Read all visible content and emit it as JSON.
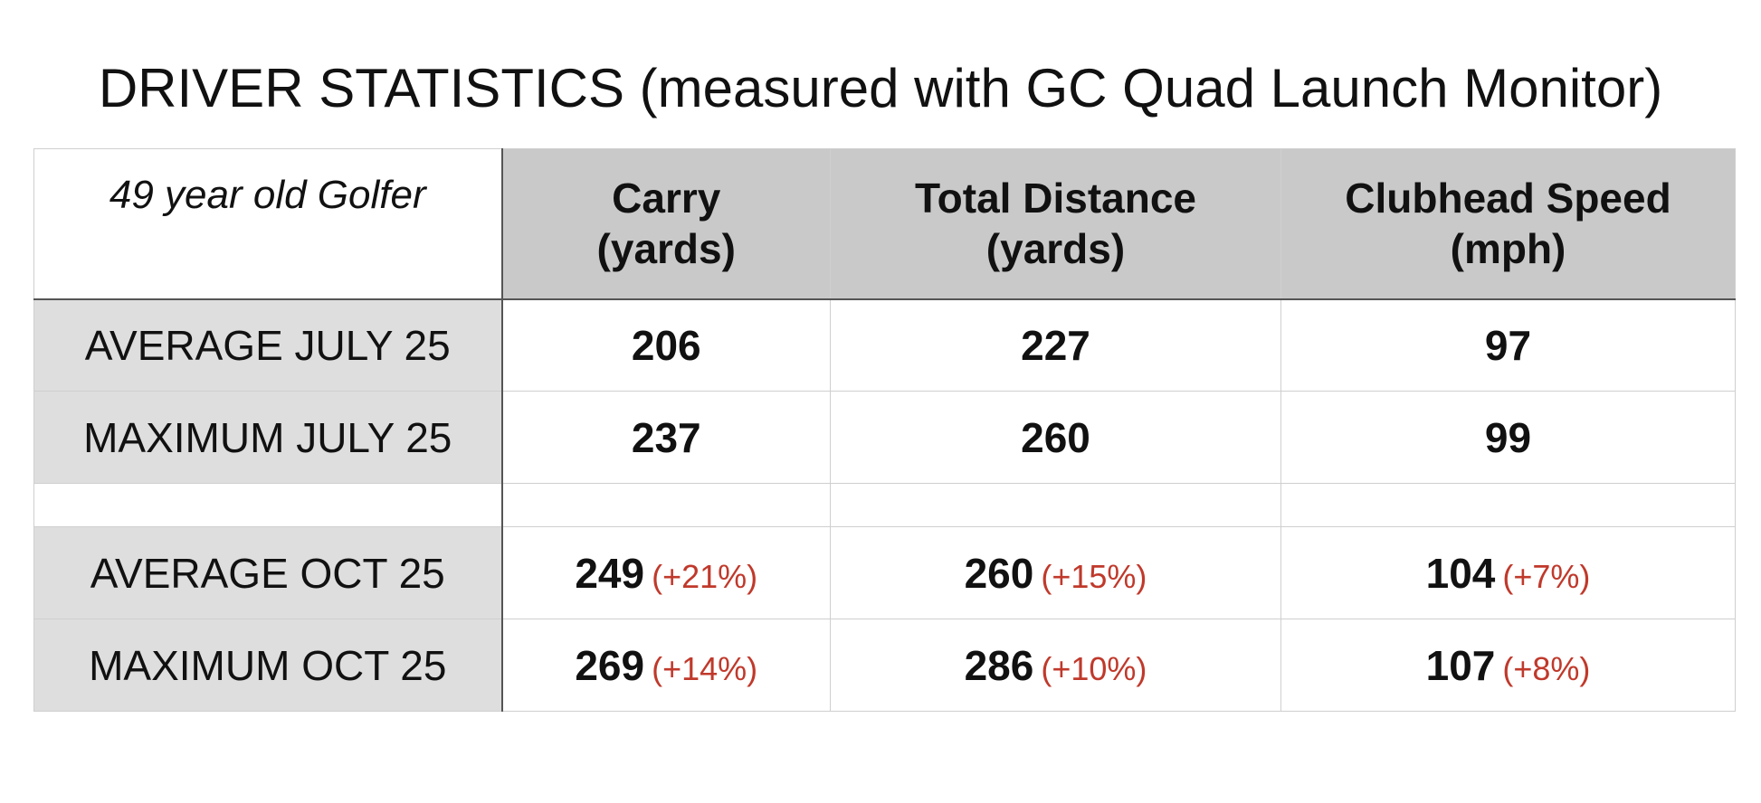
{
  "title": "DRIVER STATISTICS (measured with GC Quad Launch Monitor)",
  "table": {
    "corner_label": "49 year old Golfer",
    "headers": [
      {
        "line1": "Carry",
        "line2": "(yards)"
      },
      {
        "line1": "Total Distance",
        "line2": "(yards)"
      },
      {
        "line1": "Clubhead Speed",
        "line2": "(mph)"
      }
    ],
    "rows": [
      {
        "label": "AVERAGE JULY 25",
        "cells": [
          {
            "value": "206",
            "change": ""
          },
          {
            "value": "227",
            "change": ""
          },
          {
            "value": "97",
            "change": ""
          }
        ]
      },
      {
        "label": "MAXIMUM JULY 25",
        "cells": [
          {
            "value": "237",
            "change": ""
          },
          {
            "value": "260",
            "change": ""
          },
          {
            "value": "99",
            "change": ""
          }
        ]
      },
      {
        "label": "AVERAGE OCT 25",
        "cells": [
          {
            "value": "249",
            "change": "(+21%)"
          },
          {
            "value": "260",
            "change": "(+15%)"
          },
          {
            "value": "104",
            "change": "(+7%)"
          }
        ]
      },
      {
        "label": "MAXIMUM OCT 25",
        "cells": [
          {
            "value": "269",
            "change": "(+14%)"
          },
          {
            "value": "286",
            "change": "(+10%)"
          },
          {
            "value": "107",
            "change": "(+8%)"
          }
        ]
      }
    ]
  },
  "colors": {
    "header_fill": "#c9c9c9",
    "label_fill": "#dedede",
    "change_text": "#c0392b"
  }
}
